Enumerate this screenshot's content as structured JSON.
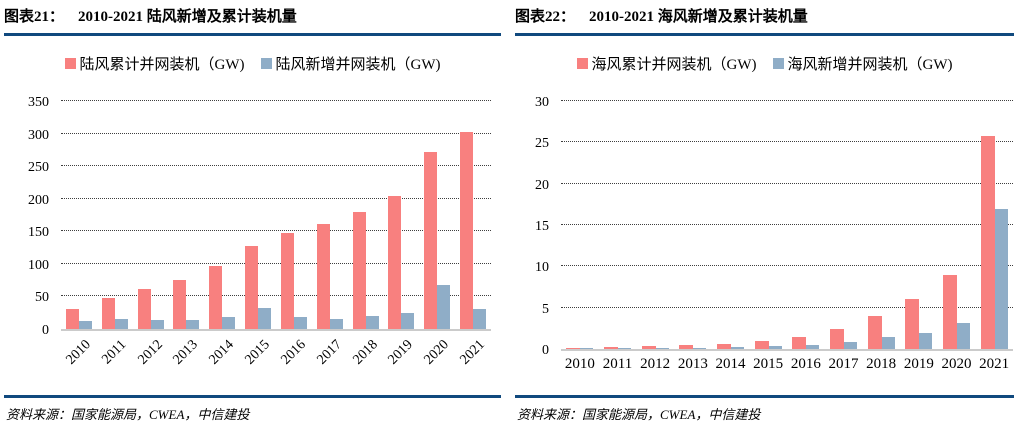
{
  "colors": {
    "rule_navy": "#10497e",
    "cumulative_red": "#f8807f",
    "new_blue": "#8fadc7",
    "gridline": "#3f3f3f",
    "axis_line": "#cbcbcb"
  },
  "chart_data": [
    {
      "type": "bar",
      "fig_label": "图表21：",
      "title": "2010-2021 陆风新增及累计装机量",
      "categories": [
        "2010",
        "2011",
        "2012",
        "2013",
        "2014",
        "2015",
        "2016",
        "2017",
        "2018",
        "2019",
        "2020",
        "2021"
      ],
      "series": [
        {
          "name": "陆风累计并网装机（GW)",
          "color": "#f8807f",
          "values": [
            30,
            47,
            61,
            76,
            96,
            128,
            147,
            161,
            180,
            204,
            271,
            302
          ]
        },
        {
          "name": "陆风新增并网装机（GW)",
          "color": "#8fadc7",
          "values": [
            13,
            16,
            14,
            14,
            19,
            32,
            19,
            15,
            20,
            24,
            68,
            30
          ]
        }
      ],
      "ylim": [
        0,
        350
      ],
      "ytick": 50,
      "grid": true,
      "legend_position": "top",
      "xlabel": "",
      "ylabel": "",
      "source": "资料来源：国家能源局，CWEA，中信建投"
    },
    {
      "type": "bar",
      "fig_label": "图表22：",
      "title": "2010-2021 海风新增及累计装机量",
      "categories": [
        "2010",
        "2011",
        "2012",
        "2013",
        "2014",
        "2015",
        "2016",
        "2017",
        "2018",
        "2019",
        "2020",
        "2021"
      ],
      "series": [
        {
          "name": "海风累计并网装机（GW)",
          "color": "#f8807f",
          "values": [
            0.15,
            0.25,
            0.4,
            0.45,
            0.65,
            1.0,
            1.5,
            2.4,
            4.0,
            6.0,
            9.0,
            25.8
          ]
        },
        {
          "name": "海风新增并网装机（GW)",
          "color": "#8fadc7",
          "values": [
            0.1,
            0.1,
            0.15,
            0.1,
            0.2,
            0.35,
            0.45,
            0.8,
            1.5,
            1.9,
            3.1,
            16.9
          ]
        }
      ],
      "ylim": [
        0,
        30
      ],
      "ytick": 5,
      "grid": true,
      "legend_position": "top",
      "xlabel": "",
      "ylabel": "",
      "source": "资料来源：国家能源局，CWEA，中信建投"
    }
  ]
}
